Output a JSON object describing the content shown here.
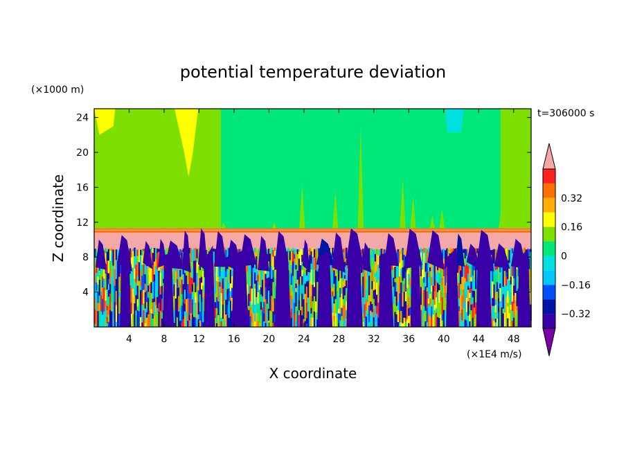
{
  "chart_data": {
    "type": "heatmap",
    "title": "potential temperature deviation",
    "xlabel": "X coordinate",
    "ylabel": "Z coordinate",
    "x_unit": "(×1E4 m/s)",
    "y_unit": "(×1000 m)",
    "time_label": "t=306000 s",
    "xlim": [
      0,
      50
    ],
    "ylim": [
      0,
      25
    ],
    "x_ticks": [
      "4",
      "8",
      "12",
      "16",
      "20",
      "24",
      "28",
      "32",
      "36",
      "40",
      "44",
      "48"
    ],
    "y_ticks": [
      "4",
      "8",
      "12",
      "16",
      "20",
      "24"
    ],
    "x_tick_values": [
      4,
      8,
      12,
      16,
      20,
      24,
      28,
      32,
      36,
      40,
      44,
      48
    ],
    "y_tick_values": [
      4,
      8,
      12,
      16,
      20,
      24
    ],
    "colorbar": {
      "levels": [
        -0.48,
        -0.4,
        -0.32,
        -0.24,
        -0.16,
        -0.08,
        0,
        0.08,
        0.16,
        0.24,
        0.32,
        0.4,
        0.48
      ],
      "colors": [
        "#7a00a8",
        "#3a00a8",
        "#0014a8",
        "#0050ff",
        "#00c8ff",
        "#00e0e0",
        "#00e87a",
        "#7ee000",
        "#ffff00",
        "#ffb000",
        "#ff7000",
        "#ff2020",
        "#f4a8a8"
      ],
      "tick_labels": [
        "0.32",
        "0.16",
        "0",
        "−0.16",
        "−0.32"
      ],
      "tick_values": [
        0.32,
        0.16,
        0,
        -0.16,
        -0.32
      ]
    },
    "regions": {
      "stratosphere_base_value": 0.04,
      "green_upper_region_x": [
        14.5,
        46.5
      ],
      "green_upper_value": -0.04,
      "inversion_layer_z": [
        10.8,
        11.3
      ],
      "inversion_value": 0.3,
      "mixed_layer_top_z": 10.8,
      "pink_band_z": [
        8.8,
        10.8
      ],
      "pink_band_value": 0.5,
      "convective_layer_z": [
        0,
        8.8
      ]
    }
  }
}
